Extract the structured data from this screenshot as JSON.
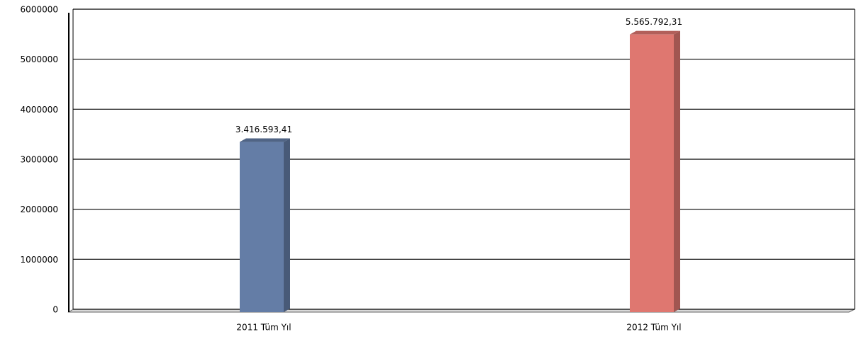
{
  "chart_data": {
    "type": "bar",
    "categories": [
      "2011 Tüm Yıl",
      "2012 Tüm Yıl"
    ],
    "values": [
      3416593.41,
      5565792.31
    ],
    "value_labels": [
      "3.416.593,41",
      "5.565.792,31"
    ],
    "colors": [
      "#647da6",
      "#df7770"
    ],
    "ylim": [
      0,
      6000000
    ],
    "yticks": [
      0,
      1000000,
      2000000,
      3000000,
      4000000,
      5000000,
      6000000
    ],
    "grid": true
  }
}
